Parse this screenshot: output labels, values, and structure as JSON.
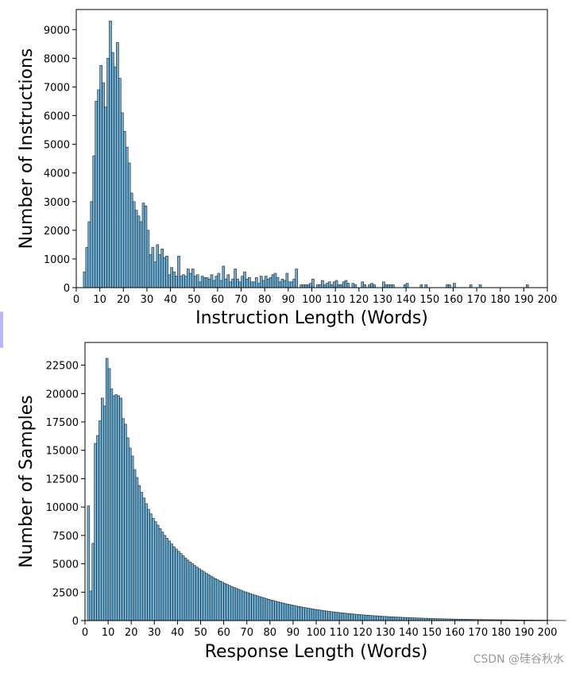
{
  "chart_data": [
    {
      "type": "bar",
      "title": "",
      "xlabel": "Instruction Length (Words)",
      "ylabel": "Number of Instructions",
      "xlim": [
        0,
        200
      ],
      "ylim": [
        0,
        9700
      ],
      "xticks": [
        0,
        10,
        20,
        30,
        40,
        50,
        60,
        70,
        80,
        90,
        100,
        110,
        120,
        130,
        140,
        150,
        160,
        170,
        180,
        190,
        200
      ],
      "yticks": [
        0,
        1000,
        2000,
        3000,
        4000,
        5000,
        6000,
        7000,
        8000,
        9000
      ],
      "grid": false,
      "bar_color": "#6baed6",
      "edge_color": "#1f1f1f",
      "bins": {
        "start": 3,
        "width": 1,
        "values": [
          550,
          1400,
          2300,
          3000,
          4600,
          6500,
          6900,
          7750,
          7150,
          6300,
          8000,
          9300,
          8200,
          7700,
          8550,
          7300,
          6100,
          5450,
          4900,
          4350,
          3300,
          3000,
          2700,
          2500,
          2300,
          2950,
          2850,
          2000,
          1150,
          1400,
          900,
          1500,
          1150,
          1350,
          1050,
          1100,
          450,
          700,
          550,
          400,
          1100,
          400,
          450,
          400,
          650,
          500,
          650,
          400,
          450,
          200,
          400,
          350,
          350,
          300,
          450,
          250,
          400,
          500,
          250,
          750,
          300,
          450,
          200,
          300,
          650,
          300,
          200,
          400,
          550,
          300,
          350,
          200,
          200,
          350,
          150,
          400,
          250,
          400,
          300,
          350,
          450,
          500,
          350,
          200,
          300,
          250,
          500,
          200,
          200,
          300,
          650,
          0,
          100,
          100,
          100,
          100,
          150,
          300,
          0,
          100,
          100,
          250,
          100,
          150,
          200,
          100,
          200,
          250,
          100,
          100,
          200,
          250,
          150,
          0,
          150,
          100,
          0,
          0,
          200,
          100,
          0,
          100,
          150,
          100,
          0,
          0,
          0,
          200,
          100,
          100,
          100,
          100,
          0,
          0,
          0,
          0,
          100,
          150,
          0,
          0,
          0,
          0,
          0,
          100,
          0,
          100,
          0,
          0,
          0,
          0,
          0,
          0,
          0,
          0,
          100,
          100,
          0,
          150,
          0,
          0,
          0,
          0,
          0,
          0,
          100,
          0,
          0,
          0,
          100,
          0,
          0,
          0,
          0,
          0,
          0,
          0,
          0,
          0,
          0,
          0,
          0,
          0,
          0,
          0,
          0,
          0,
          0,
          0,
          100
        ]
      }
    },
    {
      "type": "bar",
      "title": "",
      "xlabel": "Response Length (Words)",
      "ylabel": "Number of Samples",
      "xlim": [
        0,
        200
      ],
      "ylim": [
        0,
        24500
      ],
      "xticks": [
        0,
        10,
        20,
        30,
        40,
        50,
        60,
        70,
        80,
        90,
        100,
        110,
        120,
        130,
        140,
        150,
        160,
        170,
        180,
        190,
        200
      ],
      "yticks": [
        0,
        2500,
        5000,
        7500,
        10000,
        12500,
        15000,
        17500,
        20000,
        22500
      ],
      "grid": false,
      "bar_color": "#6baed6",
      "edge_color": "#1f1f1f",
      "bins": {
        "start": 1,
        "width": 1,
        "values": [
          10100,
          2600,
          6800,
          15600,
          16300,
          17600,
          19600,
          18900,
          23100,
          22200,
          20400,
          19800,
          19900,
          19800,
          19600,
          17800,
          17300,
          16100,
          15200,
          14500,
          13300,
          12600,
          11900,
          11300,
          10800,
          10300,
          9800,
          9400,
          9000,
          8700,
          8400,
          8100,
          7800,
          7500,
          7250,
          7000,
          6750,
          6500,
          6300,
          6100,
          5900,
          5700,
          5500,
          5330,
          5160,
          5000,
          4850,
          4700,
          4560,
          4420,
          4290,
          4160,
          4040,
          3920,
          3800,
          3690,
          3580,
          3480,
          3380,
          3280,
          3180,
          3090,
          3000,
          2910,
          2830,
          2750,
          2670,
          2590,
          2520,
          2450,
          2380,
          2310,
          2240,
          2180,
          2110,
          2050,
          1990,
          1930,
          1870,
          1810,
          1760,
          1700,
          1650,
          1600,
          1550,
          1500,
          1450,
          1410,
          1370,
          1330,
          1280,
          1240,
          1200,
          1160,
          1130,
          1090,
          1060,
          1020,
          990,
          960,
          930,
          900,
          870,
          840,
          810,
          790,
          760,
          740,
          710,
          690,
          670,
          650,
          630,
          610,
          590,
          570,
          550,
          530,
          510,
          495,
          480,
          465,
          450,
          435,
          420,
          405,
          390,
          380,
          365,
          355,
          340,
          330,
          320,
          310,
          300,
          290,
          280,
          270,
          260,
          255,
          245,
          235,
          230,
          220,
          215,
          205,
          200,
          190,
          185,
          180,
          175,
          165,
          160,
          155,
          150,
          145,
          140,
          135,
          132,
          128,
          124,
          120,
          116,
          112,
          108,
          104,
          100,
          97,
          94,
          91,
          88,
          85,
          82,
          80,
          77,
          75,
          72,
          70,
          68,
          66,
          64,
          62,
          60,
          58,
          56,
          54,
          52,
          50,
          48,
          46,
          44,
          42,
          40,
          38,
          36,
          34,
          32,
          30,
          28,
          26,
          24,
          22,
          20,
          18,
          16,
          14,
          12
        ]
      }
    }
  ],
  "watermark": "CSDN @硅谷秋水"
}
